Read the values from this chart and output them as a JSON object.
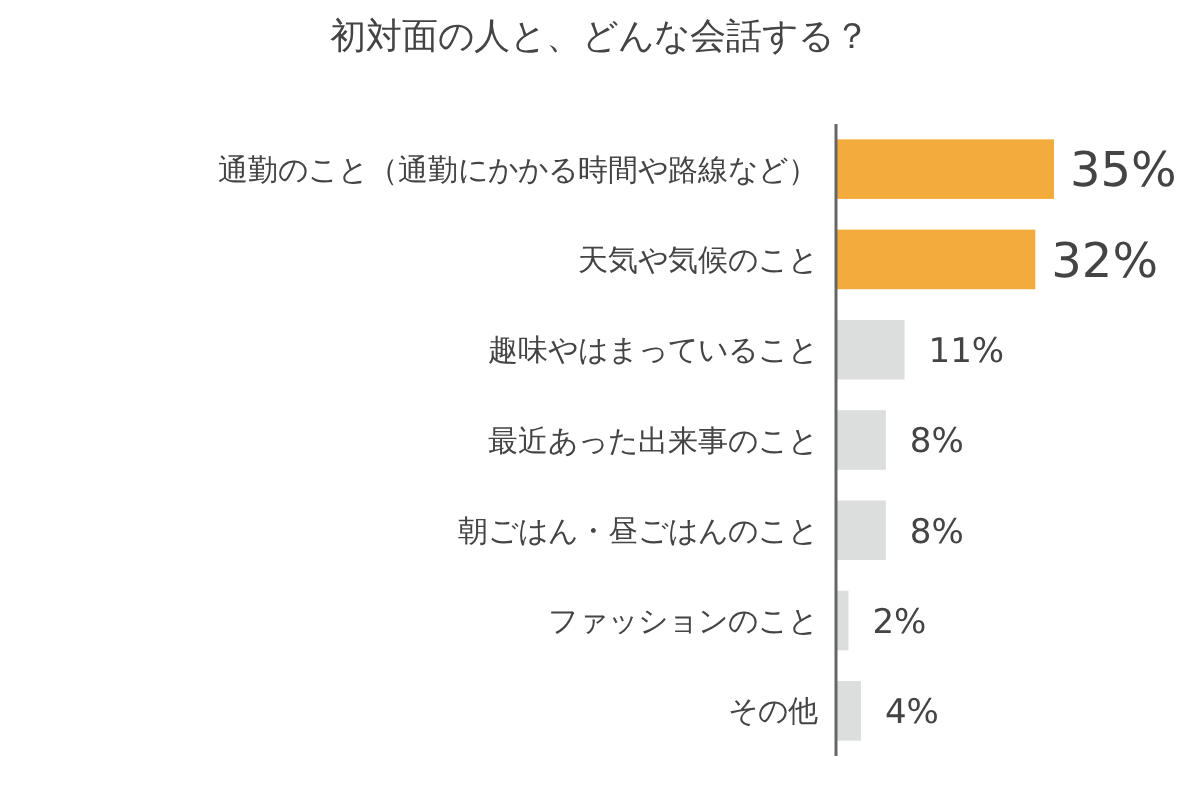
{
  "chart_data": {
    "type": "bar",
    "orientation": "horizontal",
    "title": "初対面の人と、どんな会話する？",
    "categories": [
      "通勤のこと（通勤にかかる時間や路線など）",
      "天気や気候のこと",
      "趣味やはまっていること",
      "最近あった出来事のこと",
      "朝ごはん・昼ごはんのこと",
      "ファッションのこと",
      "その他"
    ],
    "values": [
      35,
      32,
      11,
      8,
      8,
      2,
      4
    ],
    "colors": [
      "#f3ac3c",
      "#f3ac3c",
      "#dcdddd",
      "#dcdddd",
      "#dcdddd",
      "#dcdddd",
      "#dcdddd"
    ],
    "value_labels": [
      "35%",
      "32%",
      "11%",
      "8%",
      "8%",
      "2%",
      "4%"
    ]
  }
}
